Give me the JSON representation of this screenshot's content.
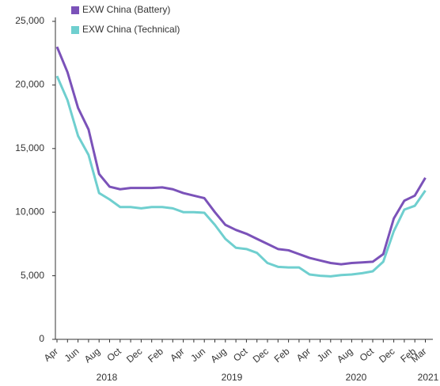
{
  "chart_data": {
    "type": "line",
    "categories": [
      "Apr",
      null,
      "Jun",
      null,
      "Aug",
      null,
      "Oct",
      null,
      "Dec",
      null,
      "Feb",
      null,
      "Apr",
      null,
      "Jun",
      null,
      "Aug",
      null,
      "Oct",
      null,
      "Dec",
      null,
      "Feb",
      null,
      "Apr",
      null,
      "Jun",
      null,
      "Aug",
      null,
      "Oct",
      null,
      "Dec",
      null,
      "Feb",
      "Mar"
    ],
    "x_groups": [
      "2018",
      "2019",
      "2020",
      "2021"
    ],
    "series": [
      {
        "name": "EXW China (Battery)",
        "color": "#7b52b9",
        "values": [
          23000,
          21000,
          18200,
          16500,
          13000,
          12000,
          11800,
          11900,
          11900,
          11900,
          11950,
          11800,
          11500,
          11300,
          11100,
          10000,
          9000,
          8600,
          8300,
          7900,
          7500,
          7100,
          7000,
          6700,
          6400,
          6200,
          6000,
          5900,
          6000,
          6050,
          6100,
          6700,
          9500,
          10900,
          11300,
          12700
        ]
      },
      {
        "name": "EXW China (Technical)",
        "color": "#6fcfcf",
        "values": [
          20700,
          18800,
          16000,
          14500,
          11500,
          11000,
          10400,
          10400,
          10300,
          10400,
          10400,
          10300,
          10000,
          10000,
          9950,
          9000,
          7900,
          7200,
          7100,
          6800,
          6000,
          5700,
          5650,
          5650,
          5100,
          5000,
          4950,
          5050,
          5100,
          5200,
          5350,
          6100,
          8500,
          10200,
          10500,
          11700
        ]
      }
    ],
    "ylim": [
      0,
      25000
    ],
    "yticks": [
      0,
      {
        "value": 5000,
        "label": "5,000"
      },
      {
        "value": 10000,
        "label": "10,000"
      },
      {
        "value": 15000,
        "label": "15,000"
      },
      {
        "value": 20000,
        "label": "20,000"
      },
      {
        "value": 25000,
        "label": "25,000"
      }
    ],
    "grid": false,
    "legend": "top-left"
  }
}
